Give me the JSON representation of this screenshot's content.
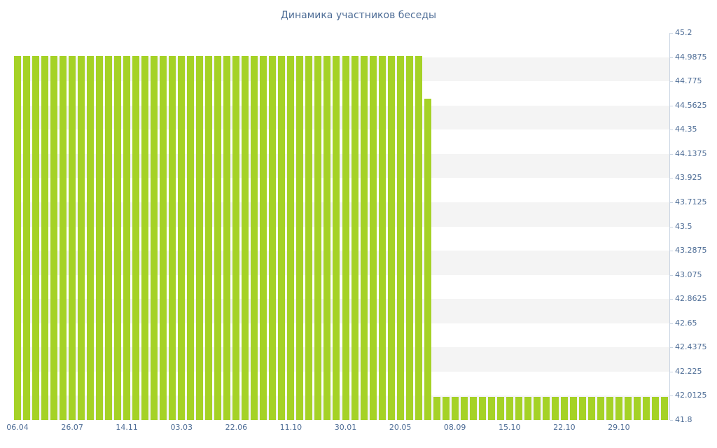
{
  "chart_data": {
    "type": "bar",
    "title": "Динамика участников беседы",
    "xlabel": "",
    "ylabel": "",
    "ylim": [
      41.8,
      45.2
    ],
    "grid": "horizontal-stripes",
    "legend": "none",
    "y_axis_side": "right",
    "y_tick_labels": [
      "45.2",
      "44.9875",
      "44.775",
      "44.5625",
      "44.35",
      "44.1375",
      "43.925",
      "43.7125",
      "43.5",
      "43.2875",
      "43.075",
      "42.8625",
      "42.65",
      "42.4375",
      "42.225",
      "42.0125",
      "41.8"
    ],
    "x_tick_labels": [
      "06.04",
      "26.07",
      "14.11",
      "03.03",
      "22.06",
      "11.10",
      "30.01",
      "20.05",
      "08.09",
      "15.10",
      "22.10",
      "29.10"
    ],
    "x_tick_every_n_bars": 6,
    "values": [
      45,
      45,
      45,
      45,
      45,
      45,
      45,
      45,
      45,
      45,
      45,
      45,
      45,
      45,
      45,
      45,
      45,
      45,
      45,
      45,
      45,
      45,
      45,
      45,
      45,
      45,
      45,
      45,
      45,
      45,
      45,
      45,
      45,
      45,
      45,
      45,
      45,
      45,
      45,
      45,
      45,
      45,
      45,
      45,
      45,
      44.62,
      42,
      42,
      42,
      42,
      42,
      42,
      42,
      42,
      42,
      42,
      42,
      42,
      42,
      42,
      42,
      42,
      42,
      42,
      42,
      42,
      42,
      42,
      42,
      42,
      42,
      42
    ],
    "colors": {
      "bar": "#a5d226",
      "label": "#4e6d96",
      "axis": "#c9d4e2",
      "stripe": "#f4f4f4",
      "background": "#ffffff"
    }
  }
}
